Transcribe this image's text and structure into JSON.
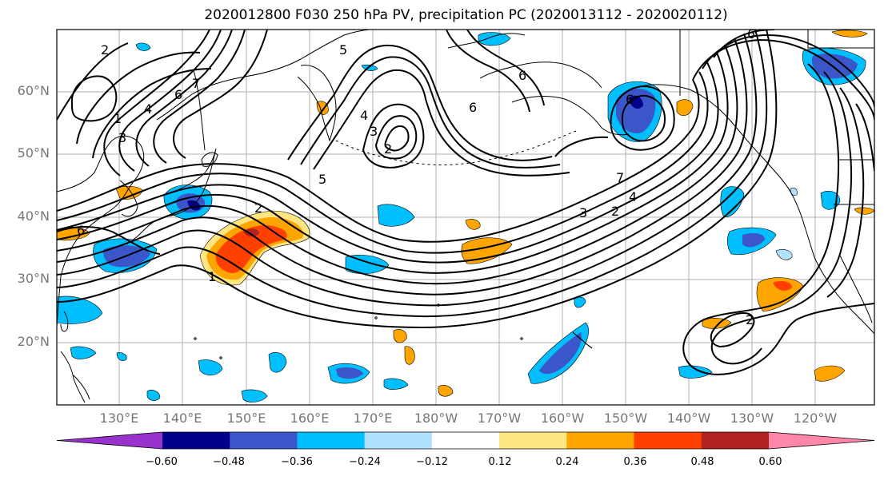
{
  "title": "2020012800 F030 250 hPa PV, precipitation PC (2020013112 - 2020020112)",
  "lat_labels": [
    "60°N",
    "50°N",
    "40°N",
    "30°N",
    "20°N"
  ],
  "lon_labels": [
    "130°E",
    "140°E",
    "150°E",
    "160°E",
    "170°E",
    "180°W",
    "170°W",
    "160°W",
    "150°W",
    "140°W",
    "130°W",
    "120°W"
  ],
  "colorbar": {
    "ticks": [
      "−0.60",
      "−0.48",
      "−0.36",
      "−0.24",
      "−0.12",
      "0.12",
      "0.24",
      "0.36",
      "0.48",
      "0.60"
    ],
    "colors": [
      "#9932cc",
      "#00008b",
      "#3a56c8",
      "#00bfff",
      "#b0e2ff",
      "#ffffff",
      "#ffe680",
      "#ffa500",
      "#ff4000",
      "#b22222",
      "#ff88aa"
    ]
  },
  "contour_labels": [
    "2",
    "1",
    "3",
    "4",
    "6",
    "7",
    "6",
    "5",
    "4",
    "3",
    "2",
    "6",
    "5",
    "7",
    "4",
    "3",
    "2",
    "1",
    "6",
    "6",
    "2",
    "2",
    "6"
  ]
}
